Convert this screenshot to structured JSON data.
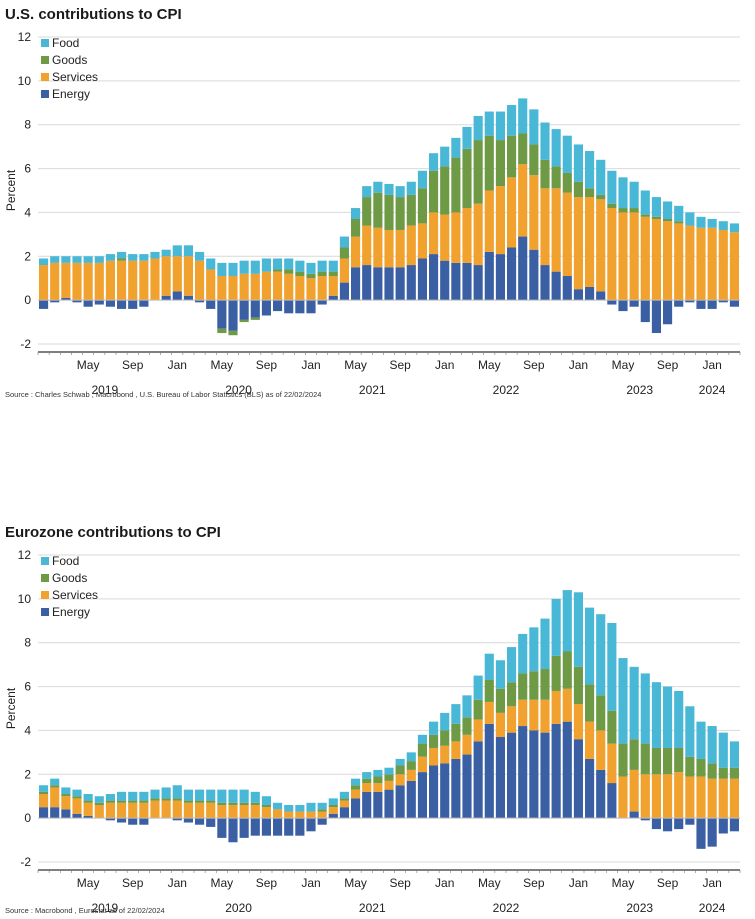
{
  "chart_data": [
    {
      "type": "bar",
      "stacked": true,
      "title": "U.S. contributions to CPI",
      "ylabel": "Percent",
      "xlabel": "",
      "ylim": [
        -2,
        12
      ],
      "yticks": [
        -2,
        0,
        2,
        4,
        6,
        8,
        10,
        12
      ],
      "grid": true,
      "legend": "top-left",
      "month_ticks": [
        {
          "label": "May",
          "index": 4
        },
        {
          "label": "Sep",
          "index": 8
        },
        {
          "label": "Jan",
          "index": 12
        },
        {
          "label": "May",
          "index": 16
        },
        {
          "label": "Sep",
          "index": 20
        },
        {
          "label": "Jan",
          "index": 24
        },
        {
          "label": "May",
          "index": 28
        },
        {
          "label": "Sep",
          "index": 32
        },
        {
          "label": "Jan",
          "index": 36
        },
        {
          "label": "May",
          "index": 40
        },
        {
          "label": "Sep",
          "index": 44
        },
        {
          "label": "Jan",
          "index": 48
        },
        {
          "label": "May",
          "index": 52
        },
        {
          "label": "Sep",
          "index": 56
        },
        {
          "label": "Jan",
          "index": 60
        }
      ],
      "year_ticks": [
        {
          "label": "2019",
          "index": 5.5
        },
        {
          "label": "2020",
          "index": 17.5
        },
        {
          "label": "2021",
          "index": 29.5
        },
        {
          "label": "2022",
          "index": 41.5
        },
        {
          "label": "2023",
          "index": 53.5
        },
        {
          "label": "2024",
          "index": 60
        }
      ],
      "series": [
        {
          "name": "Energy",
          "color": "#3a5fa2",
          "values": [
            -0.4,
            -0.1,
            0.1,
            -0.1,
            -0.3,
            -0.2,
            -0.3,
            -0.4,
            -0.4,
            -0.3,
            0.0,
            0.2,
            0.4,
            0.2,
            -0.1,
            -0.4,
            -1.3,
            -1.4,
            -0.9,
            -0.8,
            -0.7,
            -0.5,
            -0.6,
            -0.6,
            -0.6,
            -0.2,
            0.2,
            0.8,
            1.5,
            1.6,
            1.5,
            1.5,
            1.5,
            1.6,
            1.9,
            2.1,
            1.8,
            1.7,
            1.7,
            1.6,
            2.2,
            2.1,
            2.4,
            2.9,
            2.3,
            1.6,
            1.3,
            1.1,
            0.5,
            0.6,
            0.4,
            -0.2,
            -0.5,
            -0.3,
            -1.0,
            -1.5,
            -1.1,
            -0.3,
            -0.1,
            -0.4,
            -0.4,
            -0.1,
            -0.3
          ]
        },
        {
          "name": "Services",
          "color": "#f0a12e",
          "values": [
            1.6,
            1.7,
            1.6,
            1.7,
            1.7,
            1.7,
            1.8,
            1.8,
            1.8,
            1.8,
            1.9,
            1.8,
            1.6,
            1.8,
            1.8,
            1.4,
            1.1,
            1.1,
            1.2,
            1.2,
            1.3,
            1.3,
            1.2,
            1.1,
            1.0,
            1.1,
            0.9,
            1.1,
            1.4,
            1.8,
            1.8,
            1.7,
            1.7,
            1.8,
            1.6,
            1.9,
            2.1,
            2.3,
            2.5,
            2.8,
            2.8,
            3.1,
            3.2,
            3.3,
            3.4,
            3.5,
            3.8,
            3.8,
            4.2,
            4.1,
            4.2,
            4.2,
            4.0,
            4.0,
            3.8,
            3.7,
            3.6,
            3.5,
            3.4,
            3.3,
            3.3,
            3.2,
            3.1
          ]
        },
        {
          "name": "Goods",
          "color": "#6e9a45",
          "values": [
            0.0,
            0.0,
            0.0,
            0.0,
            0.0,
            0.0,
            0.0,
            0.1,
            0.0,
            0.0,
            0.0,
            0.0,
            0.0,
            0.0,
            0.0,
            0.0,
            -0.2,
            -0.2,
            -0.1,
            -0.1,
            0.0,
            0.1,
            0.2,
            0.2,
            0.2,
            0.2,
            0.2,
            0.5,
            0.8,
            1.3,
            1.6,
            1.6,
            1.5,
            1.4,
            1.6,
            1.9,
            2.2,
            2.5,
            2.7,
            2.9,
            2.5,
            2.1,
            1.9,
            1.4,
            1.4,
            1.3,
            1.0,
            0.9,
            0.7,
            0.4,
            0.2,
            0.2,
            0.2,
            0.2,
            0.1,
            0.1,
            0.1,
            0.1,
            0.0,
            0.0,
            0.0,
            0.0,
            0.0
          ]
        },
        {
          "name": "Food",
          "color": "#49b7d6",
          "values": [
            0.3,
            0.3,
            0.3,
            0.3,
            0.3,
            0.3,
            0.3,
            0.3,
            0.3,
            0.3,
            0.3,
            0.3,
            0.5,
            0.5,
            0.4,
            0.5,
            0.6,
            0.6,
            0.6,
            0.6,
            0.6,
            0.5,
            0.5,
            0.5,
            0.5,
            0.5,
            0.5,
            0.5,
            0.5,
            0.5,
            0.5,
            0.5,
            0.5,
            0.6,
            0.8,
            0.8,
            0.9,
            0.9,
            1.0,
            1.1,
            1.1,
            1.3,
            1.4,
            1.6,
            1.6,
            1.7,
            1.7,
            1.7,
            1.7,
            1.7,
            1.6,
            1.5,
            1.4,
            1.2,
            1.1,
            0.9,
            0.8,
            0.7,
            0.6,
            0.5,
            0.4,
            0.4,
            0.4
          ]
        }
      ]
    },
    {
      "type": "bar",
      "stacked": true,
      "title": "Eurozone contributions to CPI",
      "ylabel": "Percent",
      "xlabel": "",
      "ylim": [
        -2,
        12
      ],
      "yticks": [
        -2,
        0,
        2,
        4,
        6,
        8,
        10,
        12
      ],
      "grid": true,
      "legend": "top-left",
      "month_ticks": [
        {
          "label": "May",
          "index": 4
        },
        {
          "label": "Sep",
          "index": 8
        },
        {
          "label": "Jan",
          "index": 12
        },
        {
          "label": "May",
          "index": 16
        },
        {
          "label": "Sep",
          "index": 20
        },
        {
          "label": "Jan",
          "index": 24
        },
        {
          "label": "May",
          "index": 28
        },
        {
          "label": "Sep",
          "index": 32
        },
        {
          "label": "Jan",
          "index": 36
        },
        {
          "label": "May",
          "index": 40
        },
        {
          "label": "Sep",
          "index": 44
        },
        {
          "label": "Jan",
          "index": 48
        },
        {
          "label": "May",
          "index": 52
        },
        {
          "label": "Sep",
          "index": 56
        },
        {
          "label": "Jan",
          "index": 60
        }
      ],
      "year_ticks": [
        {
          "label": "2019",
          "index": 5.5
        },
        {
          "label": "2020",
          "index": 17.5
        },
        {
          "label": "2021",
          "index": 29.5
        },
        {
          "label": "2022",
          "index": 41.5
        },
        {
          "label": "2023",
          "index": 53.5
        },
        {
          "label": "2024",
          "index": 60
        }
      ],
      "series": [
        {
          "name": "Energy",
          "color": "#3a5fa2",
          "values": [
            0.5,
            0.5,
            0.4,
            0.2,
            0.1,
            0.0,
            -0.1,
            -0.2,
            -0.3,
            -0.3,
            0.0,
            0.0,
            -0.1,
            -0.2,
            -0.3,
            -0.4,
            -0.9,
            -1.1,
            -0.9,
            -0.8,
            -0.8,
            -0.8,
            -0.8,
            -0.8,
            -0.6,
            -0.3,
            0.2,
            0.5,
            0.9,
            1.2,
            1.2,
            1.3,
            1.5,
            1.7,
            2.1,
            2.4,
            2.5,
            2.7,
            2.9,
            3.5,
            4.3,
            3.7,
            3.9,
            4.2,
            4.0,
            3.9,
            4.3,
            4.4,
            3.6,
            2.7,
            2.2,
            1.6,
            0.0,
            0.3,
            -0.1,
            -0.5,
            -0.6,
            -0.5,
            -0.3,
            -1.4,
            -1.3,
            -0.7,
            -0.6
          ]
        },
        {
          "name": "Services",
          "color": "#f0a12e",
          "values": [
            0.6,
            0.9,
            0.6,
            0.7,
            0.6,
            0.6,
            0.7,
            0.7,
            0.7,
            0.7,
            0.8,
            0.8,
            0.8,
            0.7,
            0.7,
            0.7,
            0.6,
            0.6,
            0.6,
            0.6,
            0.5,
            0.4,
            0.3,
            0.3,
            0.3,
            0.3,
            0.3,
            0.3,
            0.4,
            0.4,
            0.4,
            0.4,
            0.5,
            0.5,
            0.7,
            0.8,
            0.8,
            0.8,
            0.9,
            1.0,
            1.0,
            1.1,
            1.2,
            1.2,
            1.4,
            1.5,
            1.5,
            1.5,
            1.6,
            1.7,
            1.8,
            1.8,
            1.9,
            1.9,
            2.0,
            2.0,
            2.0,
            2.1,
            1.9,
            1.9,
            1.8,
            1.8,
            1.8
          ]
        },
        {
          "name": "Goods",
          "color": "#6e9a45",
          "values": [
            0.1,
            0.1,
            0.1,
            0.1,
            0.1,
            0.1,
            0.1,
            0.1,
            0.1,
            0.1,
            0.1,
            0.1,
            0.1,
            0.1,
            0.1,
            0.1,
            0.1,
            0.1,
            0.1,
            0.1,
            0.1,
            0.0,
            0.0,
            0.0,
            0.0,
            0.1,
            0.1,
            0.1,
            0.2,
            0.2,
            0.3,
            0.3,
            0.4,
            0.4,
            0.6,
            0.6,
            0.7,
            0.8,
            0.8,
            0.9,
            1.0,
            1.1,
            1.1,
            1.2,
            1.3,
            1.4,
            1.6,
            1.7,
            1.7,
            1.7,
            1.6,
            1.5,
            1.5,
            1.4,
            1.4,
            1.2,
            1.2,
            1.1,
            0.9,
            0.8,
            0.7,
            0.5,
            0.5
          ]
        },
        {
          "name": "Food",
          "color": "#49b7d6",
          "values": [
            0.3,
            0.3,
            0.3,
            0.3,
            0.3,
            0.3,
            0.3,
            0.4,
            0.4,
            0.4,
            0.4,
            0.5,
            0.6,
            0.5,
            0.5,
            0.5,
            0.6,
            0.6,
            0.6,
            0.5,
            0.4,
            0.3,
            0.3,
            0.3,
            0.4,
            0.3,
            0.3,
            0.3,
            0.3,
            0.3,
            0.3,
            0.3,
            0.3,
            0.4,
            0.4,
            0.6,
            0.8,
            0.9,
            1.0,
            1.1,
            1.2,
            1.3,
            1.6,
            1.8,
            2.0,
            2.3,
            2.6,
            2.8,
            3.4,
            3.5,
            3.7,
            4.0,
            3.9,
            3.3,
            3.2,
            3.0,
            2.8,
            2.6,
            2.3,
            1.7,
            1.7,
            1.6,
            1.2
          ]
        }
      ]
    }
  ],
  "sources": [
    "Source : Charles Schwab , Macrobond , U.S. Bureau of Labor Statistics   (BLS) as of 22/02/2024",
    "Source : Macrobond , Eurostat as of  22/02/2024"
  ]
}
